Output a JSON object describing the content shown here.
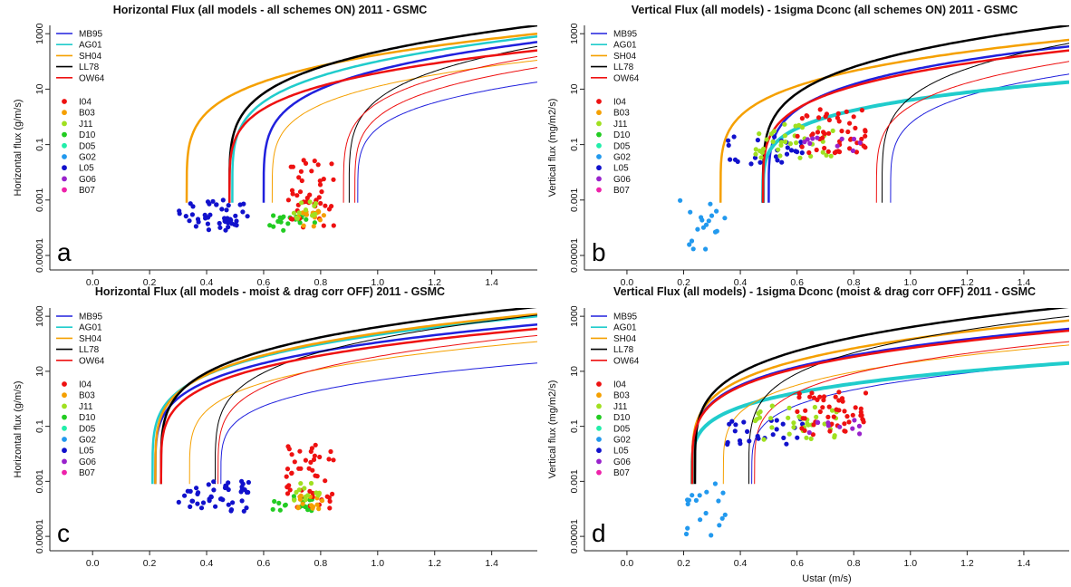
{
  "chart_data": [
    {
      "type": "line",
      "title": "Horizontal Flux (all models - all schemes ON) 2011 - GSMC",
      "xlabel": "",
      "ylabel": "Horizontal flux (g/m/s)",
      "panel_letter": "a",
      "xlim": [
        -0.15,
        1.56
      ],
      "x_ticks": [
        "0.0",
        "0.2",
        "0.4",
        "0.6",
        "0.8",
        "1.0",
        "1.2",
        "1.4"
      ],
      "y_scale": "log",
      "ylim": [
        3e-06,
        2000
      ],
      "y_ticks": [
        "0.00001",
        "0.001",
        "0.1",
        "10",
        "1000"
      ],
      "series": [
        {
          "name": "MB95",
          "color": "#2020dd",
          "curves": [
            {
              "x0": 0.6,
              "x1": 1.56,
              "y": 500,
              "w": 2.5
            },
            {
              "x0": 0.93,
              "x1": 1.56,
              "y": 18,
              "w": 1
            }
          ]
        },
        {
          "name": "AG01",
          "color": "#20cccc",
          "curves": [
            {
              "x0": 0.49,
              "x1": 1.56,
              "y": 800,
              "w": 2.5
            }
          ]
        },
        {
          "name": "SH04",
          "color": "#f5a000",
          "curves": [
            {
              "x0": 0.33,
              "x1": 1.56,
              "y": 1000,
              "w": 2.5
            },
            {
              "x0": 0.63,
              "x1": 1.56,
              "y": 110,
              "w": 1
            }
          ]
        },
        {
          "name": "LL78",
          "color": "#000000",
          "curves": [
            {
              "x0": 0.48,
              "x1": 1.56,
              "y": 2000,
              "w": 2.5
            },
            {
              "x0": 0.9,
              "x1": 1.56,
              "y": 350,
              "w": 1
            }
          ]
        },
        {
          "name": "OW64",
          "color": "#ee1111",
          "curves": [
            {
              "x0": 0.48,
              "x1": 1.56,
              "y": 250,
              "w": 2.5
            },
            {
              "x0": 0.88,
              "x1": 1.56,
              "y": 150,
              "w": 1
            },
            {
              "x0": 0.92,
              "x1": 1.56,
              "y": 60,
              "w": 1
            }
          ]
        }
      ],
      "legend_points": [
        {
          "name": "I04",
          "color": "#ee1111"
        },
        {
          "name": "B03",
          "color": "#f5a000"
        },
        {
          "name": "J11",
          "color": "#a0e020"
        },
        {
          "name": "D10",
          "color": "#22cc22"
        },
        {
          "name": "D05",
          "color": "#22eeaa"
        },
        {
          "name": "G02",
          "color": "#2299ee"
        },
        {
          "name": "L05",
          "color": "#1111cc"
        },
        {
          "name": "G06",
          "color": "#9922cc"
        },
        {
          "name": "B07",
          "color": "#ee22aa"
        }
      ],
      "point_clusters": [
        {
          "site": "L05",
          "x_range": [
            0.3,
            0.55
          ],
          "y_range": [
            8e-05,
            0.001
          ],
          "count": 45
        },
        {
          "site": "D10",
          "x_range": [
            0.62,
            0.78
          ],
          "y_range": [
            8e-05,
            0.0003
          ],
          "count": 20
        },
        {
          "site": "I04",
          "x_range": [
            0.68,
            0.85
          ],
          "y_range": [
            0.0001,
            0.03
          ],
          "count": 45
        },
        {
          "site": "B03",
          "x_range": [
            0.72,
            0.82
          ],
          "y_range": [
            0.0001,
            0.0004
          ],
          "count": 15
        },
        {
          "site": "J11",
          "x_range": [
            0.7,
            0.8
          ],
          "y_range": [
            0.0002,
            0.001
          ],
          "count": 12
        }
      ]
    },
    {
      "type": "line",
      "title": "Vertical Flux (all models) - 1sigma Dconc (all schemes ON) 2011 - GSMC",
      "xlabel": "",
      "ylabel": "Vertical flux (mg/m2/s)",
      "panel_letter": "b",
      "xlim": [
        -0.15,
        1.56
      ],
      "x_ticks": [
        "0.0",
        "0.2",
        "0.4",
        "0.6",
        "0.8",
        "1.0",
        "1.2",
        "1.4"
      ],
      "y_scale": "log",
      "ylim": [
        3e-06,
        2000
      ],
      "y_ticks": [
        "0.00001",
        "0.001",
        "0.1",
        "10",
        "1000"
      ],
      "series": [
        {
          "name": "MB95",
          "color": "#2020dd",
          "curves": [
            {
              "x0": 0.5,
              "x1": 1.56,
              "y": 350,
              "w": 2.5
            },
            {
              "x0": 0.93,
              "x1": 1.56,
              "y": 35,
              "w": 1
            }
          ]
        },
        {
          "name": "AG01",
          "color": "#20cccc",
          "curves": [
            {
              "x0": 0.48,
              "x1": 1.56,
              "y": 18,
              "w": 4
            }
          ]
        },
        {
          "name": "SH04",
          "color": "#f5a000",
          "curves": [
            {
              "x0": 0.33,
              "x1": 1.56,
              "y": 600,
              "w": 2.5
            }
          ]
        },
        {
          "name": "LL78",
          "color": "#000000",
          "curves": [
            {
              "x0": 0.48,
              "x1": 1.56,
              "y": 2000,
              "w": 2.5
            },
            {
              "x0": 0.9,
              "x1": 1.56,
              "y": 450,
              "w": 1
            }
          ]
        },
        {
          "name": "OW64",
          "color": "#ee1111",
          "curves": [
            {
              "x0": 0.48,
              "x1": 1.56,
              "y": 250,
              "w": 2.5
            },
            {
              "x0": 0.88,
              "x1": 1.56,
              "y": 100,
              "w": 1
            }
          ]
        }
      ],
      "legend_points": [
        {
          "name": "I04",
          "color": "#ee1111"
        },
        {
          "name": "B03",
          "color": "#f5a000"
        },
        {
          "name": "J11",
          "color": "#a0e020"
        },
        {
          "name": "D10",
          "color": "#22cc22"
        },
        {
          "name": "D05",
          "color": "#22eeaa"
        },
        {
          "name": "G02",
          "color": "#2299ee"
        },
        {
          "name": "L05",
          "color": "#1111cc"
        },
        {
          "name": "G06",
          "color": "#9922cc"
        },
        {
          "name": "B07",
          "color": "#ee22aa"
        }
      ],
      "point_clusters": [
        {
          "site": "G02",
          "x_range": [
            0.18,
            0.35
          ],
          "y_range": [
            1e-05,
            0.001
          ],
          "count": 18
        },
        {
          "site": "L05",
          "x_range": [
            0.35,
            0.62
          ],
          "y_range": [
            0.02,
            0.2
          ],
          "count": 25
        },
        {
          "site": "J11",
          "x_range": [
            0.45,
            0.75
          ],
          "y_range": [
            0.03,
            0.6
          ],
          "count": 35
        },
        {
          "site": "I04",
          "x_range": [
            0.6,
            0.85
          ],
          "y_range": [
            0.05,
            2
          ],
          "count": 50
        },
        {
          "site": "G06",
          "x_range": [
            0.6,
            0.85
          ],
          "y_range": [
            0.05,
            0.2
          ],
          "count": 10
        }
      ]
    },
    {
      "type": "line",
      "title": "Horizontal Flux (all models - moist & drag corr OFF) 2011 - GSMC",
      "xlabel": "",
      "ylabel": "Horizontal flux (g/m/s)",
      "panel_letter": "c",
      "xlim": [
        -0.15,
        1.56
      ],
      "x_ticks": [
        "0.0",
        "0.2",
        "0.4",
        "0.6",
        "0.8",
        "1.0",
        "1.2",
        "1.4"
      ],
      "y_scale": "log",
      "ylim": [
        3e-06,
        2000
      ],
      "y_ticks": [
        "0.00001",
        "0.001",
        "0.1",
        "10",
        "1000"
      ],
      "series": [
        {
          "name": "MB95",
          "color": "#2020dd",
          "curves": [
            {
              "x0": 0.22,
              "x1": 1.56,
              "y": 500,
              "w": 2.5
            },
            {
              "x0": 0.45,
              "x1": 1.56,
              "y": 20,
              "w": 1
            }
          ]
        },
        {
          "name": "AG01",
          "color": "#20cccc",
          "curves": [
            {
              "x0": 0.21,
              "x1": 1.56,
              "y": 1000,
              "w": 2.5
            }
          ]
        },
        {
          "name": "SH04",
          "color": "#f5a000",
          "curves": [
            {
              "x0": 0.22,
              "x1": 1.56,
              "y": 1200,
              "w": 2.5
            },
            {
              "x0": 0.34,
              "x1": 1.56,
              "y": 120,
              "w": 1
            }
          ]
        },
        {
          "name": "LL78",
          "color": "#000000",
          "curves": [
            {
              "x0": 0.24,
              "x1": 1.56,
              "y": 2200,
              "w": 2.5
            },
            {
              "x0": 0.43,
              "x1": 1.56,
              "y": 1100,
              "w": 1
            }
          ]
        },
        {
          "name": "OW64",
          "color": "#ee1111",
          "curves": [
            {
              "x0": 0.24,
              "x1": 1.56,
              "y": 350,
              "w": 2.5
            },
            {
              "x0": 0.44,
              "x1": 1.56,
              "y": 200,
              "w": 1
            }
          ]
        }
      ],
      "legend_points": [
        {
          "name": "I04",
          "color": "#ee1111"
        },
        {
          "name": "B03",
          "color": "#f5a000"
        },
        {
          "name": "J11",
          "color": "#a0e020"
        },
        {
          "name": "D10",
          "color": "#22cc22"
        },
        {
          "name": "D05",
          "color": "#22eeaa"
        },
        {
          "name": "G02",
          "color": "#2299ee"
        },
        {
          "name": "L05",
          "color": "#1111cc"
        },
        {
          "name": "G06",
          "color": "#9922cc"
        },
        {
          "name": "B07",
          "color": "#ee22aa"
        }
      ],
      "point_clusters": [
        {
          "site": "L05",
          "x_range": [
            0.3,
            0.55
          ],
          "y_range": [
            8e-05,
            0.001
          ],
          "count": 45
        },
        {
          "site": "D10",
          "x_range": [
            0.62,
            0.78
          ],
          "y_range": [
            8e-05,
            0.0003
          ],
          "count": 20
        },
        {
          "site": "I04",
          "x_range": [
            0.68,
            0.85
          ],
          "y_range": [
            0.0001,
            0.03
          ],
          "count": 45
        },
        {
          "site": "B03",
          "x_range": [
            0.72,
            0.82
          ],
          "y_range": [
            0.0001,
            0.0004
          ],
          "count": 15
        },
        {
          "site": "J11",
          "x_range": [
            0.7,
            0.8
          ],
          "y_range": [
            0.0002,
            0.001
          ],
          "count": 12
        }
      ]
    },
    {
      "type": "line",
      "title": "Vertical Flux (all models) - 1sigma Dconc (moist & drag corr OFF) 2011 - GSMC",
      "xlabel": "Ustar (m/s)",
      "ylabel": "Vertical flux (mg/m2/s)",
      "panel_letter": "d",
      "xlim": [
        -0.15,
        1.56
      ],
      "x_ticks": [
        "0.0",
        "0.2",
        "0.4",
        "0.6",
        "0.8",
        "1.0",
        "1.2",
        "1.4"
      ],
      "y_scale": "log",
      "ylim": [
        3e-06,
        2000
      ],
      "y_ticks": [
        "0.00001",
        "0.001",
        "0.1",
        "10",
        "1000"
      ],
      "series": [
        {
          "name": "MB95",
          "color": "#2020dd",
          "curves": [
            {
              "x0": 0.23,
              "x1": 1.56,
              "y": 350,
              "w": 2.5
            },
            {
              "x0": 0.44,
              "x1": 1.56,
              "y": 20,
              "w": 1
            }
          ]
        },
        {
          "name": "AG01",
          "color": "#20cccc",
          "curves": [
            {
              "x0": 0.23,
              "x1": 1.56,
              "y": 20,
              "w": 4
            }
          ]
        },
        {
          "name": "SH04",
          "color": "#f5a000",
          "curves": [
            {
              "x0": 0.23,
              "x1": 1.56,
              "y": 700,
              "w": 2.5
            },
            {
              "x0": 0.34,
              "x1": 1.56,
              "y": 90,
              "w": 1
            }
          ]
        },
        {
          "name": "LL78",
          "color": "#000000",
          "curves": [
            {
              "x0": 0.24,
              "x1": 1.56,
              "y": 2200,
              "w": 2.5
            },
            {
              "x0": 0.43,
              "x1": 1.56,
              "y": 1000,
              "w": 1
            }
          ]
        },
        {
          "name": "OW64",
          "color": "#ee1111",
          "curves": [
            {
              "x0": 0.23,
              "x1": 1.56,
              "y": 300,
              "w": 2.5
            },
            {
              "x0": 0.45,
              "x1": 1.56,
              "y": 120,
              "w": 1
            }
          ]
        }
      ],
      "legend_points": [
        {
          "name": "I04",
          "color": "#ee1111"
        },
        {
          "name": "B03",
          "color": "#f5a000"
        },
        {
          "name": "J11",
          "color": "#a0e020"
        },
        {
          "name": "D10",
          "color": "#22cc22"
        },
        {
          "name": "D05",
          "color": "#22eeaa"
        },
        {
          "name": "G02",
          "color": "#2299ee"
        },
        {
          "name": "L05",
          "color": "#1111cc"
        },
        {
          "name": "G06",
          "color": "#9922cc"
        },
        {
          "name": "B07",
          "color": "#ee22aa"
        }
      ],
      "point_clusters": [
        {
          "site": "G02",
          "x_range": [
            0.18,
            0.35
          ],
          "y_range": [
            1e-05,
            0.001
          ],
          "count": 18
        },
        {
          "site": "L05",
          "x_range": [
            0.35,
            0.62
          ],
          "y_range": [
            0.02,
            0.2
          ],
          "count": 25
        },
        {
          "site": "J11",
          "x_range": [
            0.45,
            0.75
          ],
          "y_range": [
            0.03,
            0.6
          ],
          "count": 35
        },
        {
          "site": "I04",
          "x_range": [
            0.6,
            0.85
          ],
          "y_range": [
            0.05,
            2
          ],
          "count": 50
        },
        {
          "site": "G06",
          "x_range": [
            0.6,
            0.85
          ],
          "y_range": [
            0.05,
            0.2
          ],
          "count": 10
        }
      ]
    }
  ]
}
